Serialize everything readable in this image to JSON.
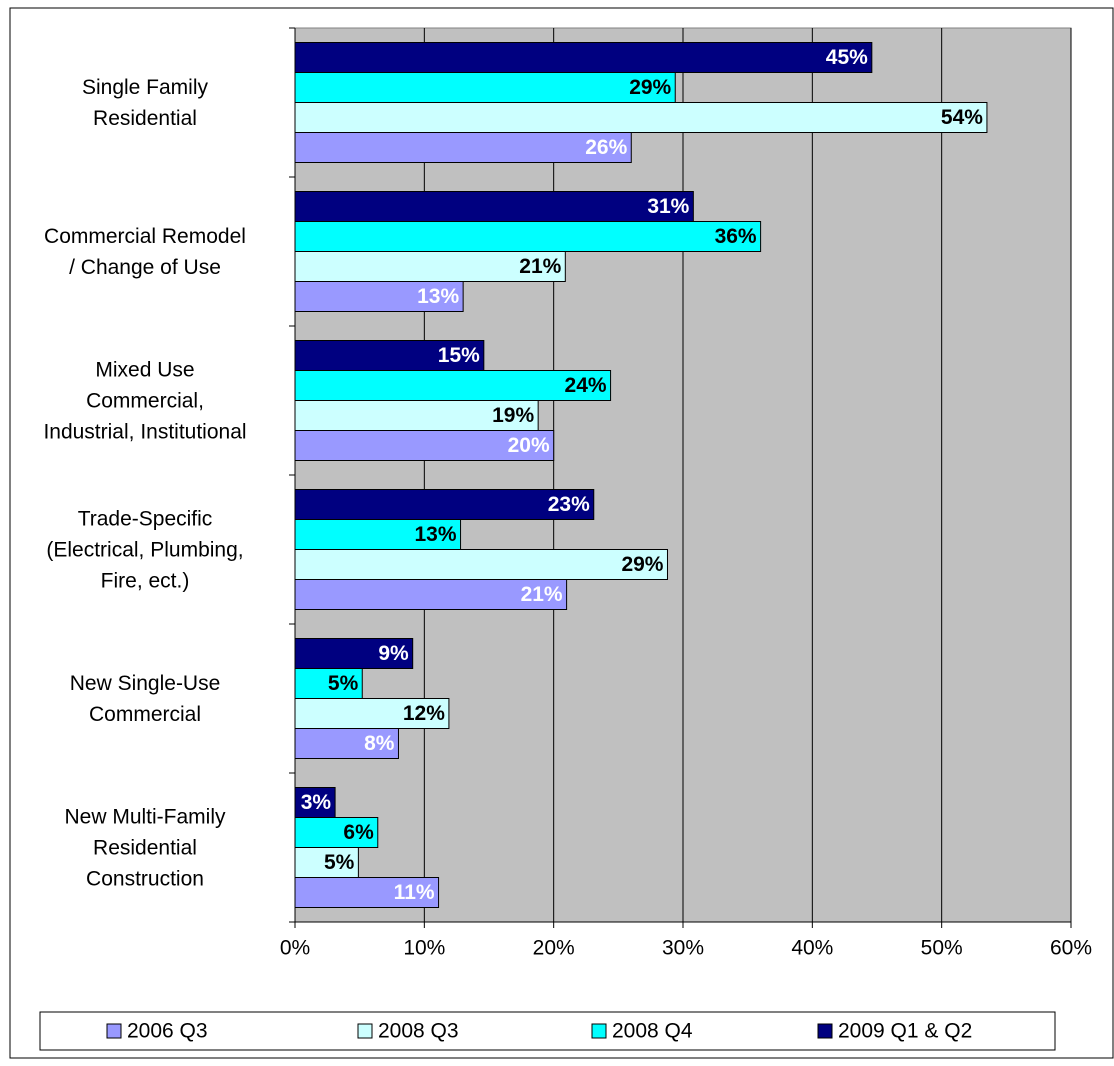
{
  "chart_data": {
    "type": "hbar",
    "categories": [
      "Single Family\nResidential",
      "Commercial Remodel\n/ Change of Use",
      "Mixed Use\nCommercial,\nIndustrial, Institutional",
      "Trade-Specific\n(Electrical, Plumbing,\nFire, ect.)",
      "New Single-Use\nCommercial",
      "New Multi-Family\nResidential\nConstruction"
    ],
    "series": [
      {
        "name": "2006 Q3",
        "color": "#9999ff",
        "label_color": "#ffffff",
        "values": [
          26.0,
          13.0,
          20.0,
          21.0,
          8.0,
          11.1
        ],
        "value_labels": [
          "26%",
          "13%",
          "20%",
          "21%",
          "8%",
          "11%"
        ]
      },
      {
        "name": "2008 Q3",
        "color": "#ccffff",
        "label_color": "#000000",
        "values": [
          53.5,
          20.9,
          18.8,
          28.8,
          11.9,
          4.9
        ],
        "value_labels": [
          "54%",
          "21%",
          "19%",
          "29%",
          "12%",
          "5%"
        ]
      },
      {
        "name": "2008 Q4",
        "color": "#00ffff",
        "label_color": "#000000",
        "values": [
          29.4,
          36.0,
          24.4,
          12.8,
          5.2,
          6.4
        ],
        "value_labels": [
          "29%",
          "36%",
          "24%",
          "13%",
          "5%",
          "6%"
        ]
      },
      {
        "name": "2009 Q1 & Q2",
        "color": "#000080",
        "label_color": "#ffffff",
        "values": [
          44.6,
          30.8,
          14.6,
          23.1,
          9.1,
          3.1
        ],
        "value_labels": [
          "45%",
          "31%",
          "15%",
          "23%",
          "9%",
          "3%"
        ]
      }
    ],
    "xlim": [
      0,
      60
    ],
    "xticks": [
      {
        "value": 0,
        "label": "0%"
      },
      {
        "value": 10,
        "label": "10%"
      },
      {
        "value": 20,
        "label": "20%"
      },
      {
        "value": 30,
        "label": "30%"
      },
      {
        "value": 40,
        "label": "40%"
      },
      {
        "value": 50,
        "label": "50%"
      },
      {
        "value": 60,
        "label": "60%"
      }
    ],
    "grid": true,
    "legend": "bottom",
    "plot_background": "#c0c0c0"
  }
}
